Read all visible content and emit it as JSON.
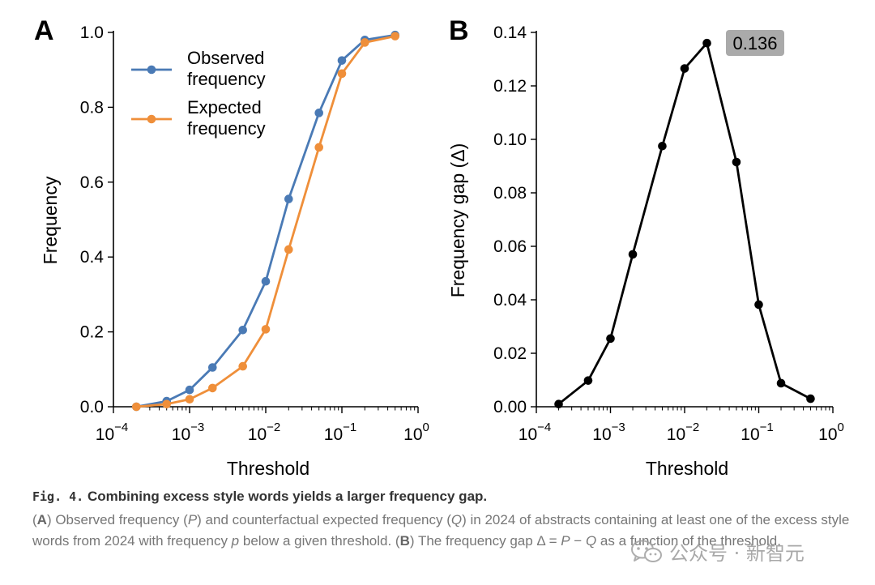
{
  "chart_data": [
    {
      "panel_label": "A",
      "type": "line",
      "x_scale": "log",
      "xlabel": "Threshold",
      "ylabel": "Frequency",
      "xlim": [
        0.0001,
        1
      ],
      "ylim": [
        0,
        1
      ],
      "x_ticks": [
        {
          "base": "10",
          "exp": "−4"
        },
        {
          "base": "10",
          "exp": "−3"
        },
        {
          "base": "10",
          "exp": "−2"
        },
        {
          "base": "10",
          "exp": "−1"
        },
        {
          "base": "10",
          "exp": "0"
        }
      ],
      "y_ticks": [
        "0.0",
        "0.2",
        "0.4",
        "0.6",
        "0.8",
        "1.0"
      ],
      "x": [
        0.0002,
        0.0005,
        0.001,
        0.002,
        0.005,
        0.01,
        0.02,
        0.05,
        0.1,
        0.2,
        0.5
      ],
      "series": [
        {
          "name_lines": [
            "Observed",
            "frequency"
          ],
          "color": "#4a7ab5",
          "values": [
            0.0,
            0.015,
            0.045,
            0.105,
            0.205,
            0.335,
            0.555,
            0.785,
            0.925,
            0.98,
            0.993
          ]
        },
        {
          "name_lines": [
            "Expected",
            "frequency"
          ],
          "color": "#ef8f3a",
          "values": [
            0.0,
            0.007,
            0.02,
            0.05,
            0.108,
            0.207,
            0.42,
            0.693,
            0.89,
            0.973,
            0.99
          ]
        }
      ],
      "legend_position": "upper-left"
    },
    {
      "panel_label": "B",
      "type": "line",
      "x_scale": "log",
      "xlabel": "Threshold",
      "ylabel": "Frequency gap (Δ)",
      "xlim": [
        0.0001,
        1
      ],
      "ylim": [
        0,
        0.14
      ],
      "x_ticks": [
        {
          "base": "10",
          "exp": "−4"
        },
        {
          "base": "10",
          "exp": "−3"
        },
        {
          "base": "10",
          "exp": "−2"
        },
        {
          "base": "10",
          "exp": "−1"
        },
        {
          "base": "10",
          "exp": "0"
        }
      ],
      "y_ticks": [
        "0.00",
        "0.02",
        "0.04",
        "0.06",
        "0.08",
        "0.10",
        "0.12",
        "0.14"
      ],
      "x": [
        0.0002,
        0.0005,
        0.001,
        0.002,
        0.005,
        0.01,
        0.02,
        0.05,
        0.1,
        0.2,
        0.5
      ],
      "series": [
        {
          "name": "gap",
          "color": "#000000",
          "values": [
            0.001,
            0.0098,
            0.0255,
            0.057,
            0.0975,
            0.1265,
            0.136,
            0.0915,
            0.0382,
            0.0088,
            0.003
          ]
        }
      ],
      "annotation": {
        "text": "0.136",
        "x": 0.02,
        "y": 0.136
      }
    }
  ],
  "caption": {
    "fig_number": "Fig. 4.",
    "title": "Combining excess style words yields a larger frequency gap.",
    "body_html": "(<b>A</b>) Observed frequency (<i>P</i>) and counterfactual expected frequency (<i>Q</i>) in 2024 of abstracts containing at least one of the excess style words from 2024 with frequency <i>p</i> below a given threshold. (<b>B</b>) The frequency gap Δ = <i>P</i> − <i>Q</i> as a function of the threshold."
  },
  "watermark": {
    "icon": "wechat-icon",
    "text": "公众号 · 新智元"
  }
}
